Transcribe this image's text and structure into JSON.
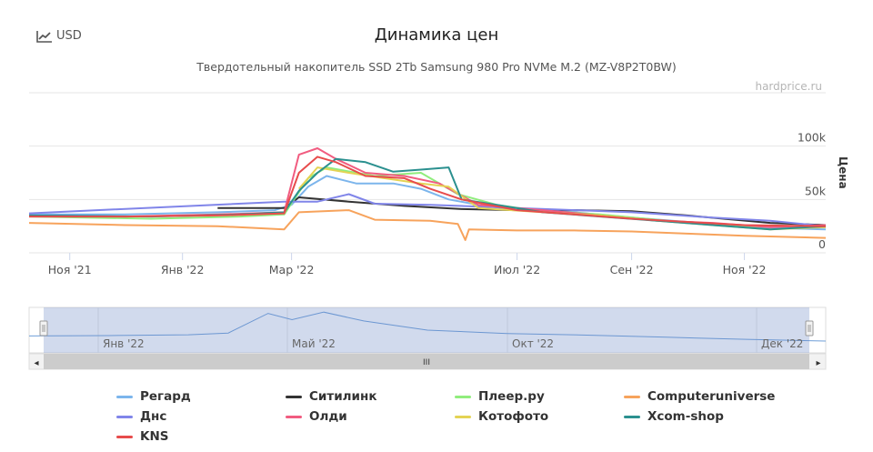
{
  "currency_button": {
    "label": "USD",
    "icon": "chart-line-icon"
  },
  "title": "Динамика цен",
  "subtitle": "Твердотельный накопитель SSD 2Tb Samsung 980 Pro NVMe M.2 (MZ-V8P2T0BW)",
  "credit": "hardprice.ru",
  "navigator": {
    "labels": [
      "Янв '22",
      "Май '22",
      "Окт '22",
      "Дек '22"
    ],
    "scrollbar_grip": "III"
  },
  "chart_data": {
    "type": "line",
    "title": "Динамика цен",
    "ylabel": "Цена",
    "ylim": [
      0,
      150000
    ],
    "yticks": [
      0,
      50000,
      100000
    ],
    "ytick_labels": [
      "0",
      "50k",
      "100k"
    ],
    "x_range": [
      "2021-10-10",
      "2022-12-15"
    ],
    "xticks": [
      "2021-11-01",
      "2022-01-01",
      "2022-03-01",
      "2022-07-01",
      "2022-09-01",
      "2022-11-01"
    ],
    "xtick_labels": [
      "Ноя '21",
      "Янв '22",
      "Мар '22",
      "Июл '22",
      "Сен '22",
      "Ноя '22"
    ],
    "legend_position": "bottom",
    "series": [
      {
        "name": "Регард",
        "color": "#7cb5ec",
        "points": [
          [
            "2021-10-10",
            36000
          ],
          [
            "2021-12-01",
            36000
          ],
          [
            "2022-01-20",
            38000
          ],
          [
            "2022-02-20",
            40000
          ],
          [
            "2022-03-01",
            45000
          ],
          [
            "2022-03-10",
            62000
          ],
          [
            "2022-03-20",
            72000
          ],
          [
            "2022-04-05",
            65000
          ],
          [
            "2022-04-25",
            65000
          ],
          [
            "2022-05-10",
            60000
          ],
          [
            "2022-05-25",
            50000
          ],
          [
            "2022-06-10",
            45000
          ],
          [
            "2022-07-01",
            40000
          ],
          [
            "2022-08-01",
            38000
          ],
          [
            "2022-09-01",
            33000
          ],
          [
            "2022-10-01",
            29000
          ],
          [
            "2022-11-01",
            24000
          ],
          [
            "2022-12-15",
            22000
          ]
        ]
      },
      {
        "name": "Ситилинк",
        "color": "#333333",
        "points": [
          [
            "2022-01-20",
            42000
          ],
          [
            "2022-02-25",
            42000
          ],
          [
            "2022-03-05",
            52000
          ],
          [
            "2022-04-01",
            48000
          ],
          [
            "2022-05-01",
            44000
          ],
          [
            "2022-06-01",
            41000
          ],
          [
            "2022-07-01",
            40000
          ],
          [
            "2022-08-01",
            40000
          ],
          [
            "2022-09-01",
            39000
          ],
          [
            "2022-10-01",
            35000
          ],
          [
            "2022-11-15",
            28000
          ],
          [
            "2022-12-15",
            26000
          ]
        ]
      },
      {
        "name": "Плеер.ру",
        "color": "#90ed7d",
        "points": [
          [
            "2021-10-10",
            34000
          ],
          [
            "2021-12-15",
            32000
          ],
          [
            "2022-02-01",
            34000
          ],
          [
            "2022-02-25",
            36000
          ],
          [
            "2022-03-10",
            70000
          ],
          [
            "2022-03-20",
            80000
          ],
          [
            "2022-04-15",
            72000
          ],
          [
            "2022-05-10",
            75000
          ],
          [
            "2022-05-30",
            55000
          ],
          [
            "2022-06-20",
            45000
          ],
          [
            "2022-07-10",
            40000
          ],
          [
            "2022-08-15",
            36000
          ],
          [
            "2022-09-20",
            30000
          ],
          [
            "2022-11-01",
            25000
          ],
          [
            "2022-12-15",
            24000
          ]
        ]
      },
      {
        "name": "Computeruniverse",
        "color": "#f7a35c",
        "points": [
          [
            "2021-10-10",
            28000
          ],
          [
            "2021-12-01",
            26000
          ],
          [
            "2022-01-20",
            25000
          ],
          [
            "2022-02-25",
            22000
          ],
          [
            "2022-03-05",
            38000
          ],
          [
            "2022-04-01",
            40000
          ],
          [
            "2022-04-15",
            31000
          ],
          [
            "2022-05-15",
            30000
          ],
          [
            "2022-05-30",
            27000
          ],
          [
            "2022-06-03",
            12000
          ],
          [
            "2022-06-05",
            22000
          ],
          [
            "2022-07-01",
            21000
          ],
          [
            "2022-08-01",
            21000
          ],
          [
            "2022-09-01",
            20000
          ],
          [
            "2022-10-01",
            18000
          ],
          [
            "2022-11-01",
            16000
          ],
          [
            "2022-12-15",
            14000
          ]
        ]
      },
      {
        "name": "Днс",
        "color": "#8085e9",
        "points": [
          [
            "2021-10-10",
            37000
          ],
          [
            "2022-02-25",
            48000
          ],
          [
            "2022-03-15",
            48000
          ],
          [
            "2022-04-01",
            55000
          ],
          [
            "2022-04-15",
            46000
          ],
          [
            "2022-05-15",
            45000
          ],
          [
            "2022-07-01",
            42000
          ],
          [
            "2022-09-01",
            38000
          ],
          [
            "2022-10-15",
            33000
          ],
          [
            "2022-11-15",
            30000
          ],
          [
            "2022-12-15",
            25000
          ]
        ]
      },
      {
        "name": "Олди",
        "color": "#f15c80",
        "points": [
          [
            "2021-10-10",
            35000
          ],
          [
            "2021-12-01",
            34000
          ],
          [
            "2022-01-20",
            36000
          ],
          [
            "2022-02-25",
            38000
          ],
          [
            "2022-03-05",
            92000
          ],
          [
            "2022-03-15",
            98000
          ],
          [
            "2022-03-25",
            88000
          ],
          [
            "2022-04-10",
            75000
          ],
          [
            "2022-05-01",
            72000
          ],
          [
            "2022-05-20",
            65000
          ],
          [
            "2022-06-10",
            45000
          ],
          [
            "2022-07-15",
            40000
          ],
          [
            "2022-08-15",
            35000
          ],
          [
            "2022-09-15",
            30000
          ],
          [
            "2022-10-15",
            28000
          ],
          [
            "2022-11-15",
            24000
          ],
          [
            "2022-12-15",
            26000
          ]
        ]
      },
      {
        "name": "Котофото",
        "color": "#e4d354",
        "points": [
          [
            "2022-03-05",
            60000
          ],
          [
            "2022-03-15",
            80000
          ],
          [
            "2022-04-01",
            75000
          ],
          [
            "2022-04-20",
            70000
          ],
          [
            "2022-05-10",
            65000
          ],
          [
            "2022-05-25",
            62000
          ],
          [
            "2022-06-10",
            42000
          ],
          [
            "2022-07-15",
            38000
          ],
          [
            "2022-08-15",
            35000
          ],
          [
            "2022-09-15",
            30000
          ],
          [
            "2022-10-15",
            26000
          ],
          [
            "2022-11-15",
            22000
          ],
          [
            "2022-12-15",
            24000
          ]
        ]
      },
      {
        "name": "Xcom-shop",
        "color": "#2b908f",
        "points": [
          [
            "2021-10-10",
            35000
          ],
          [
            "2021-12-15",
            34000
          ],
          [
            "2022-02-01",
            36000
          ],
          [
            "2022-02-25",
            38000
          ],
          [
            "2022-03-05",
            58000
          ],
          [
            "2022-03-15",
            75000
          ],
          [
            "2022-03-25",
            88000
          ],
          [
            "2022-04-10",
            85000
          ],
          [
            "2022-04-25",
            76000
          ],
          [
            "2022-05-10",
            78000
          ],
          [
            "2022-05-25",
            80000
          ],
          [
            "2022-06-01",
            50000
          ],
          [
            "2022-06-20",
            45000
          ],
          [
            "2022-07-15",
            38000
          ],
          [
            "2022-08-15",
            34000
          ],
          [
            "2022-09-15",
            30000
          ],
          [
            "2022-10-15",
            26000
          ],
          [
            "2022-11-15",
            22000
          ],
          [
            "2022-12-15",
            25000
          ]
        ]
      },
      {
        "name": "KNS",
        "color": "#e74c4c",
        "points": [
          [
            "2021-10-10",
            34000
          ],
          [
            "2021-12-01",
            34000
          ],
          [
            "2022-01-20",
            35000
          ],
          [
            "2022-02-25",
            37000
          ],
          [
            "2022-03-05",
            75000
          ],
          [
            "2022-03-15",
            90000
          ],
          [
            "2022-03-25",
            85000
          ],
          [
            "2022-04-10",
            72000
          ],
          [
            "2022-05-01",
            70000
          ],
          [
            "2022-05-15",
            60000
          ],
          [
            "2022-06-01",
            50000
          ],
          [
            "2022-07-01",
            40000
          ],
          [
            "2022-08-01",
            36000
          ],
          [
            "2022-09-01",
            32000
          ],
          [
            "2022-10-01",
            29000
          ],
          [
            "2022-11-01",
            26000
          ],
          [
            "2022-12-15",
            25000
          ]
        ]
      }
    ]
  },
  "navigator_series": [
    [
      0,
      36000
    ],
    [
      0.1,
      37000
    ],
    [
      0.2,
      39000
    ],
    [
      0.25,
      43000
    ],
    [
      0.3,
      90000
    ],
    [
      0.33,
      75000
    ],
    [
      0.37,
      93000
    ],
    [
      0.42,
      72000
    ],
    [
      0.5,
      50000
    ],
    [
      0.6,
      42000
    ],
    [
      0.7,
      38000
    ],
    [
      0.8,
      33000
    ],
    [
      0.9,
      28000
    ],
    [
      1.0,
      24000
    ]
  ]
}
